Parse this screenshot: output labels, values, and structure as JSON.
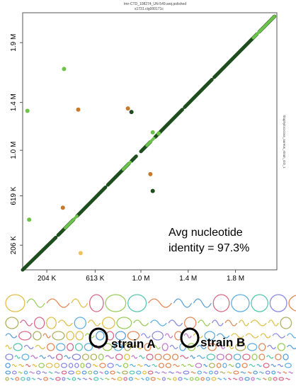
{
  "chart_data": {
    "type": "scatter",
    "subtitle_top": "tmr-CTD_108274_UN-549.seq.polished",
    "subtitle_top2": "s1731.ctg000171c",
    "right_label": "Staphylo­coccus_aureus_strain_GD_1",
    "xlim": [
      0,
      2150000
    ],
    "ylim": [
      0,
      2150000
    ],
    "x_ticks": [
      {
        "value": 204000,
        "label": "204 K"
      },
      {
        "value": 613000,
        "label": "613 K"
      },
      {
        "value": 1000000,
        "label": "1.0 M"
      },
      {
        "value": 1400000,
        "label": "1.4 M"
      },
      {
        "value": 1800000,
        "label": "1.8 M"
      }
    ],
    "y_ticks": [
      {
        "value": 206000,
        "label": "206 K"
      },
      {
        "value": 619000,
        "label": "619 K"
      },
      {
        "value": 1000000,
        "label": "1.0 M"
      },
      {
        "value": 1400000,
        "label": "1.4 M"
      },
      {
        "value": 1900000,
        "label": "1.9 M"
      }
    ],
    "grid": false,
    "series": [
      {
        "color": "#1e4d1e",
        "segments": [
          [
            0,
            0,
            280000,
            270000
          ],
          [
            300000,
            290000,
            430000,
            420000
          ],
          [
            460000,
            450000,
            700000,
            690000
          ],
          [
            720000,
            710000,
            900000,
            890000
          ],
          [
            920000,
            910000,
            960000,
            950000
          ],
          [
            1000000,
            990000,
            1080000,
            1070000
          ],
          [
            1120000,
            1110000,
            1350000,
            1340000
          ],
          [
            1370000,
            1360000,
            1600000,
            1590000
          ],
          [
            1620000,
            1610000,
            1980000,
            1970000
          ],
          [
            2000000,
            1990000,
            2130000,
            2120000
          ]
        ]
      },
      {
        "color": "#6cc24a",
        "segments": [
          [
            360000,
            350000,
            460000,
            450000
          ],
          [
            850000,
            840000,
            910000,
            900000
          ],
          [
            1050000,
            1040000,
            1110000,
            1100000
          ],
          [
            1950000,
            1940000,
            2130000,
            2120000
          ]
        ]
      }
    ],
    "points": [
      {
        "x": 350000,
        "y": 1680000,
        "color": "#6cc24a"
      },
      {
        "x": 40000,
        "y": 1330000,
        "color": "#6cc24a"
      },
      {
        "x": 470000,
        "y": 1340000,
        "color": "#c87a2a"
      },
      {
        "x": 890000,
        "y": 1350000,
        "color": "#c87a2a"
      },
      {
        "x": 920000,
        "y": 1320000,
        "color": "#1e4d1e"
      },
      {
        "x": 55000,
        "y": 420000,
        "color": "#6cc24a"
      },
      {
        "x": 340000,
        "y": 520000,
        "color": "#c87a2a"
      },
      {
        "x": 1080000,
        "y": 800000,
        "color": "#c87a2a"
      },
      {
        "x": 1100000,
        "y": 660000,
        "color": "#1e4d1e"
      },
      {
        "x": 1100000,
        "y": 1150000,
        "color": "#6cc24a"
      },
      {
        "x": 1150000,
        "y": 1140000,
        "color": "#6cc24a"
      },
      {
        "x": 490000,
        "y": 140000,
        "color": "#f0c25a"
      }
    ]
  },
  "annotation": {
    "avg_line1": "Avg nucleotide",
    "avg_line2": "identity = 97.3%"
  },
  "strains": {
    "a_label": "strain A",
    "b_label": "strain B"
  }
}
